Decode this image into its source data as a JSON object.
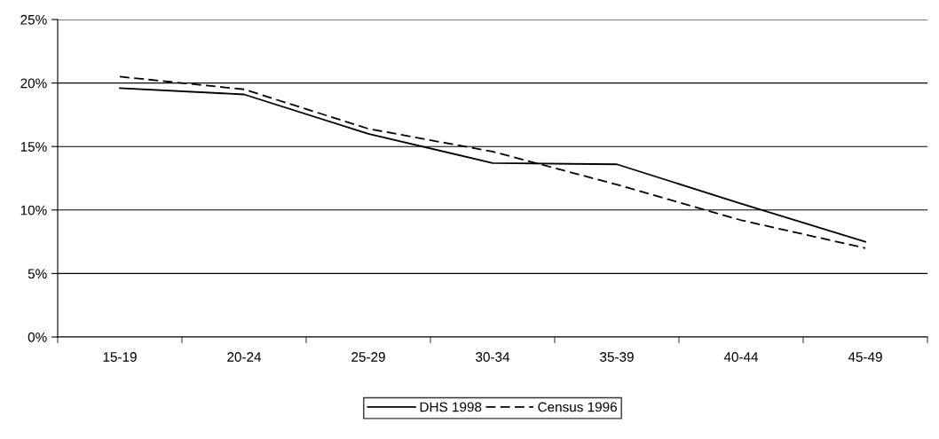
{
  "chart_data": {
    "type": "line",
    "categories": [
      "15-19",
      "20-24",
      "25-29",
      "30-34",
      "35-39",
      "40-44",
      "45-49"
    ],
    "series": [
      {
        "name": "DHS 1998",
        "color": "#000000",
        "line_style": "solid",
        "values": [
          19.6,
          19.1,
          16.0,
          13.7,
          13.6,
          10.5,
          7.5
        ]
      },
      {
        "name": "Census 1996",
        "color": "#000000",
        "line_style": "dashed",
        "values": [
          20.5,
          19.5,
          16.4,
          14.6,
          12.0,
          9.2,
          7.0
        ]
      }
    ],
    "ylim": [
      0,
      25
    ],
    "yticks": [
      {
        "value": 0,
        "label": "0%"
      },
      {
        "value": 5,
        "label": "5%"
      },
      {
        "value": 10,
        "label": "10%"
      },
      {
        "value": 15,
        "label": "15%"
      },
      {
        "value": 20,
        "label": "20%"
      },
      {
        "value": 25,
        "label": "25%"
      }
    ],
    "grid": "y",
    "legend": "bottom",
    "marker": "none"
  }
}
